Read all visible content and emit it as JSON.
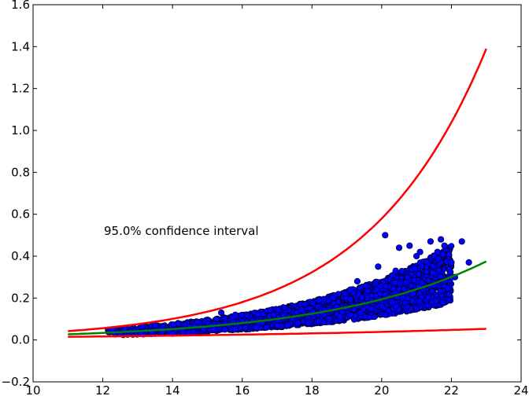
{
  "chart_data": {
    "type": "scatter",
    "title": "",
    "xlabel": "",
    "ylabel": "",
    "xlim": [
      10,
      24
    ],
    "ylim": [
      -0.2,
      1.6
    ],
    "x_ticks": [
      "10",
      "12",
      "14",
      "16",
      "18",
      "20",
      "22",
      "24"
    ],
    "y_ticks": [
      "−0.2",
      "0.0",
      "0.2",
      "0.4",
      "0.6",
      "0.8",
      "1.0",
      "1.2",
      "1.4",
      "1.6"
    ],
    "grid": false,
    "annotation": "95.0% confidence interval",
    "colors": {
      "points": "#0000ff",
      "fit": "#008000",
      "bounds": "#ff0000"
    },
    "series": [
      {
        "kind": "scatter",
        "x": [
          12.2,
          12.5,
          12.8,
          13.1,
          13.4,
          13.7,
          14.0,
          14.3,
          14.6,
          14.9,
          15.2,
          15.5,
          15.8,
          16.1,
          16.4,
          16.7,
          17.0,
          17.3,
          17.6,
          17.9,
          18.2,
          18.5,
          18.8,
          19.1,
          19.4,
          19.7,
          20.0,
          20.3,
          20.6,
          20.9,
          21.2,
          21.5,
          21.8,
          22.1,
          15.4,
          15.8,
          18.2,
          19.1,
          20.1,
          20.5,
          20.8,
          21.1,
          21.4,
          21.7,
          21.8,
          22.0,
          22.3,
          22.5,
          12.3,
          13.7,
          16.9,
          17.8,
          18.6,
          19.3,
          19.9,
          20.4,
          21.0,
          21.6,
          22.0
        ],
        "y": [
          0.04,
          0.03,
          0.04,
          0.03,
          0.04,
          0.04,
          0.03,
          0.04,
          0.04,
          0.05,
          0.05,
          0.05,
          0.05,
          0.06,
          0.06,
          0.06,
          0.07,
          0.07,
          0.08,
          0.08,
          0.09,
          0.1,
          0.11,
          0.12,
          0.13,
          0.15,
          0.16,
          0.18,
          0.2,
          0.22,
          0.24,
          0.26,
          0.28,
          0.3,
          0.13,
          0.12,
          0.19,
          0.24,
          0.5,
          0.44,
          0.45,
          0.42,
          0.47,
          0.48,
          0.45,
          0.37,
          0.47,
          0.37,
          0.05,
          0.06,
          0.12,
          0.17,
          0.2,
          0.28,
          0.35,
          0.33,
          0.4,
          0.42,
          0.3
        ]
      },
      {
        "kind": "line",
        "role": "fit",
        "x_range": [
          11,
          23
        ],
        "y_at_start": 0.027,
        "y_at_end": 0.375
      },
      {
        "kind": "line",
        "role": "upper-bound",
        "x_range": [
          11,
          23
        ],
        "y_at_start": 0.042,
        "y_at_end": 1.39
      },
      {
        "kind": "line",
        "role": "lower-bound",
        "x_range": [
          11,
          23
        ],
        "y_at_start": 0.015,
        "y_at_end": 0.053
      }
    ]
  }
}
